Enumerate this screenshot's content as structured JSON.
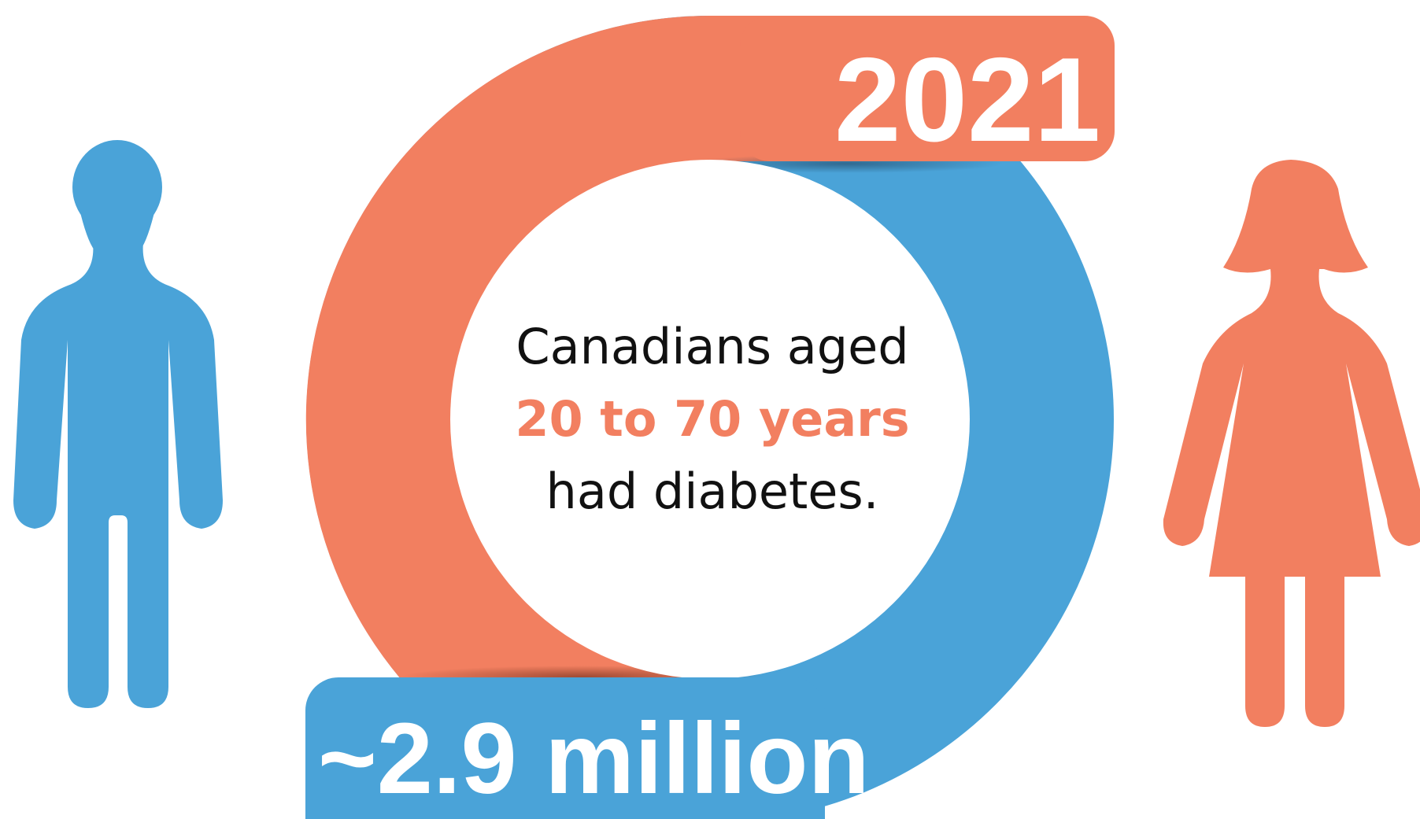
{
  "year": "2021",
  "center_text": {
    "line1": "Canadians aged",
    "line2": "20 to 70 years",
    "line3": "had diabetes."
  },
  "total": "~2.9 million",
  "colors": {
    "blue": "#4aa3d8",
    "coral": "#f27f60",
    "text": "#111111",
    "white": "#ffffff"
  }
}
